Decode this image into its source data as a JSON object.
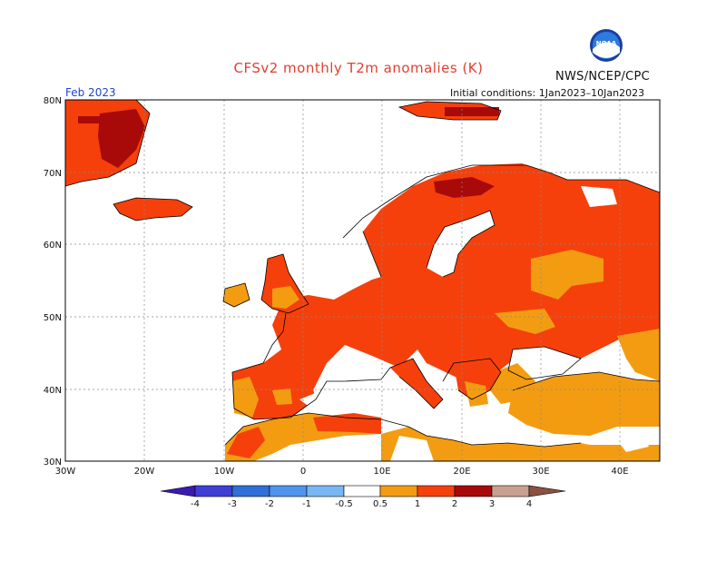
{
  "header": {
    "title": "CFSv2 monthly T2m anomalies (K)",
    "agency": "NWS/NCEP/CPC",
    "month": "Feb 2023",
    "initial_conditions": "Initial conditions: 1Jan2023–10Jan2023",
    "logo_text": "NOAA"
  },
  "map": {
    "lon_labels": [
      "30W",
      "20W",
      "10W",
      "0",
      "10E",
      "20E",
      "30E",
      "40E"
    ],
    "lat_labels": [
      "80N",
      "70N",
      "60N",
      "50N",
      "40N",
      "30N"
    ],
    "lon_range": [
      -30,
      45
    ],
    "lat_range": [
      30,
      80
    ]
  },
  "legend": {
    "labels": [
      "-4",
      "-3",
      "-2",
      "-1",
      "-0.5",
      "0.5",
      "1",
      "2",
      "3",
      "4"
    ],
    "colors": {
      "below_-4": "#3a1ab0",
      "-4_-3": "#3f3fd6",
      "-3_-2": "#2f6fd8",
      "-2_-1": "#4f94ee",
      "-1_-0.5": "#78b6f4",
      "-0.5_0.5": "#ffffff",
      "0.5_1": "#f39c12",
      "1_2": "#f5400c",
      "2_3": "#a80a0a",
      "3_4": "#c8a090",
      "above_4": "#8a5040"
    }
  }
}
